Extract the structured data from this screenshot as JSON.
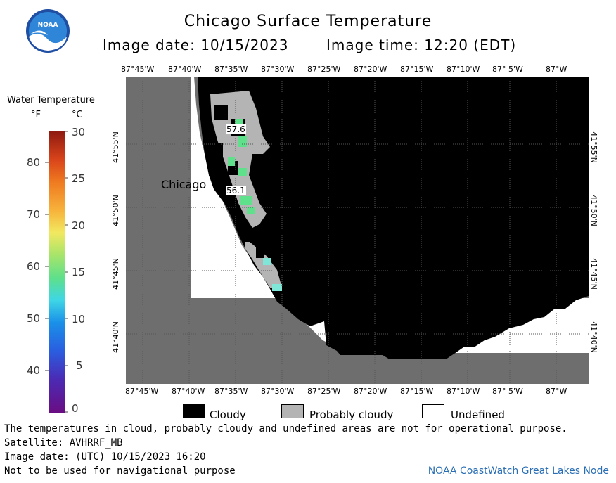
{
  "title": "Chicago Surface Temperature",
  "image_date_label": "Image date: 10/15/2023",
  "image_time_label": "Image time: 12:20 (EDT)",
  "colorbar": {
    "title": "Water Temperature",
    "unit_f": "°F",
    "unit_c": "°C",
    "f_ticks": [
      "80",
      "70",
      "60",
      "50",
      "40"
    ],
    "c_ticks": [
      "30",
      "25",
      "20",
      "15",
      "10",
      "5",
      "0"
    ]
  },
  "lon_labels": [
    "87°45'W",
    "87°40'W",
    "87°35'W",
    "87°30'W",
    "87°25'W",
    "87°20'W",
    "87°15'W",
    "87°10'W",
    "87° 5'W",
    "87°W"
  ],
  "lat_labels": [
    "41°55'N",
    "41°50'N",
    "41°45'N",
    "41°40'N"
  ],
  "map": {
    "city": "Chicago",
    "temp_readings": [
      "57.6",
      "56.1"
    ],
    "colors": {
      "land": "#6e6e6e",
      "cloudy": "#000000",
      "probably_cloudy": "#b4b4b4",
      "undefined": "#ffffff",
      "water_warm": "#5fe08a",
      "water_cool": "#7fe6d8"
    }
  },
  "legend": {
    "cloudy": "Cloudy",
    "probably_cloudy": "Probably cloudy",
    "undefined": "Undefined"
  },
  "footer": {
    "line1": "The temperatures in cloud, probably cloudy and undefined areas are not for operational purpose.",
    "line2": "Satellite: AVHRRF_MB",
    "line3": "Image date: (UTC) 10/15/2023  16:20",
    "line4": "Not to be used for navigational purpose",
    "node": "NOAA CoastWatch Great Lakes Node"
  },
  "logo_text": "NOAA"
}
